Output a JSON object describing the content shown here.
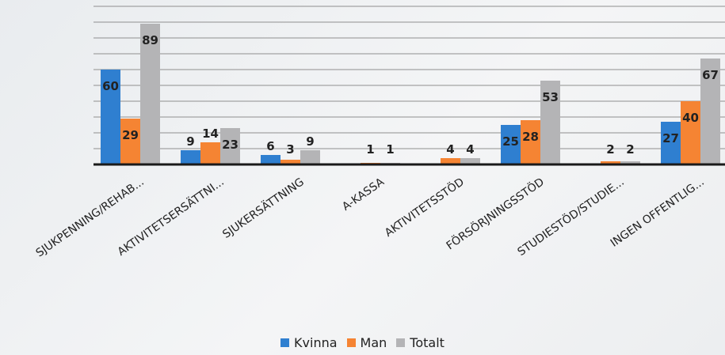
{
  "chart_data": {
    "type": "bar",
    "categories": [
      "SJUKPENNING/REHAB...",
      "AKTIVITETSERSÄTTNI...",
      "SJUKERSÄTTNING",
      "A-KASSA",
      "AKTIVITETSSTÖD",
      "FÖRSÖRJNINGSSTÖD",
      "STUDIESTÖD/STUDIE...",
      "INGEN OFFENTLIG..."
    ],
    "series": [
      {
        "name": "Kvinna",
        "color": "#2f7fd0",
        "values": [
          60,
          9,
          6,
          0,
          0,
          25,
          0,
          27
        ]
      },
      {
        "name": "Man",
        "color": "#f58433",
        "values": [
          29,
          14,
          3,
          1,
          4,
          28,
          2,
          40
        ]
      },
      {
        "name": "Totalt",
        "color": "#b4b4b6",
        "values": [
          89,
          23,
          9,
          1,
          4,
          53,
          2,
          67
        ]
      }
    ],
    "data_labels": [
      [
        "60",
        "29",
        "89"
      ],
      [
        "9",
        "14",
        "23"
      ],
      [
        "6",
        "3",
        "9"
      ],
      [
        "",
        "1",
        "1"
      ],
      [
        "",
        "4",
        "4"
      ],
      [
        "25",
        "28",
        "53"
      ],
      [
        "",
        "2",
        "2"
      ],
      [
        "27",
        "40",
        "67"
      ]
    ],
    "ylim": [
      0,
      100
    ],
    "gridlines": true,
    "legend_position": "bottom"
  }
}
